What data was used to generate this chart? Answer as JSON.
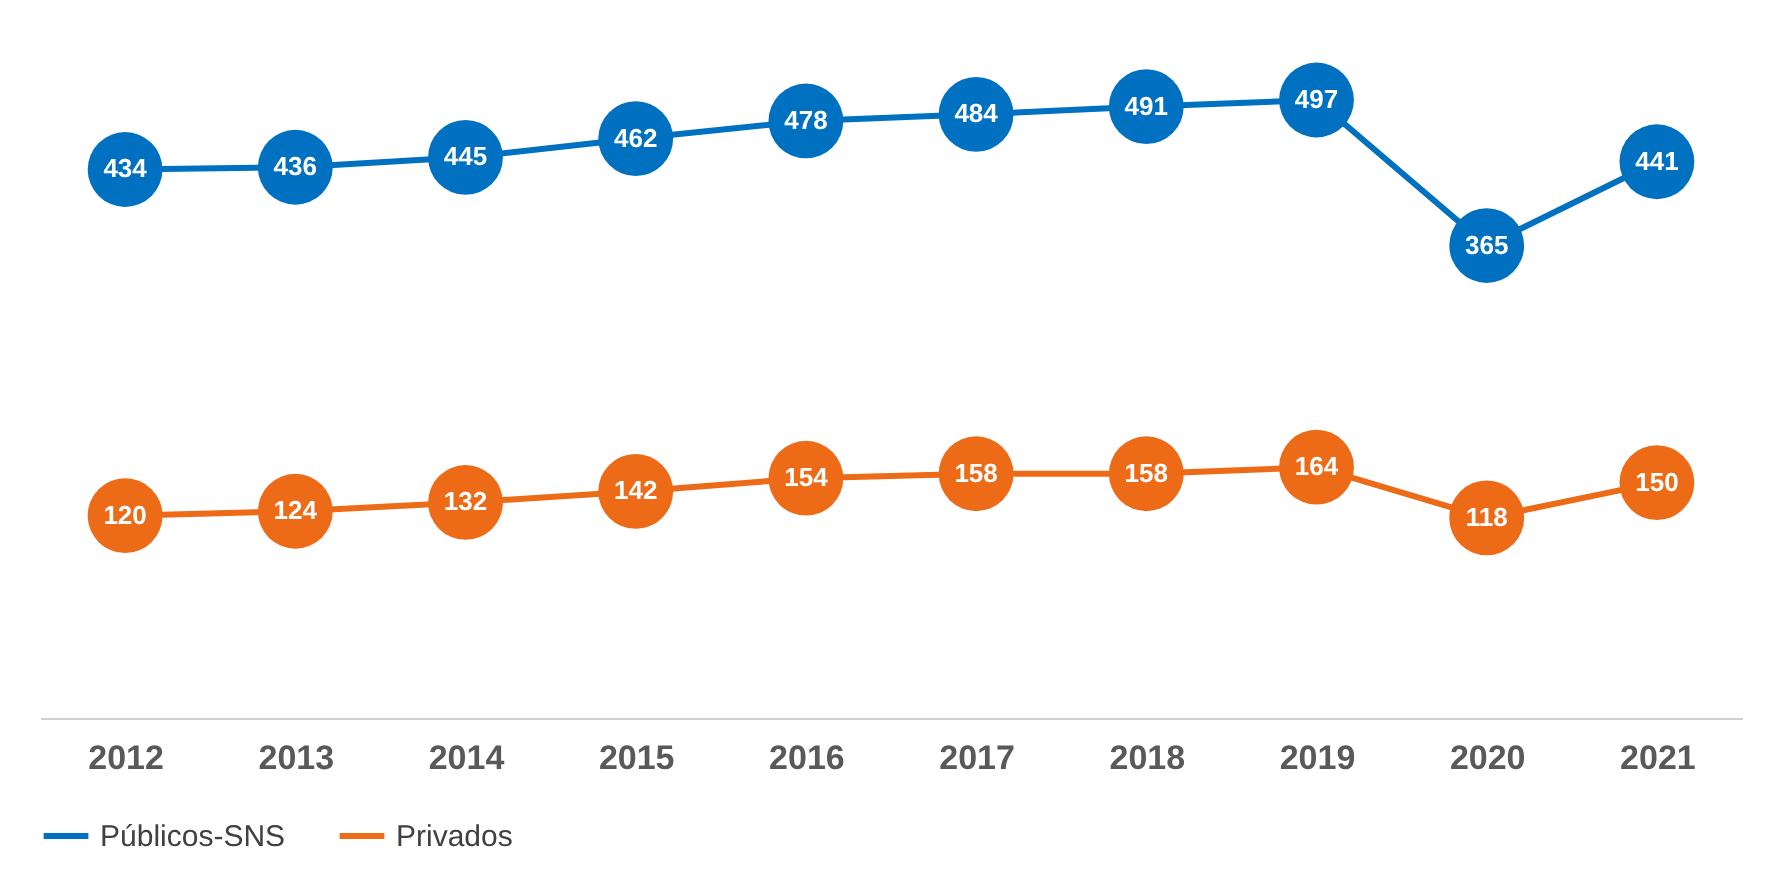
{
  "chart_data": {
    "type": "line",
    "categories": [
      "2012",
      "2013",
      "2014",
      "2015",
      "2016",
      "2017",
      "2018",
      "2019",
      "2020",
      "2021"
    ],
    "series": [
      {
        "name": "Públicos-SNS",
        "color": "#0070c0",
        "values": [
          434,
          436,
          445,
          462,
          478,
          484,
          491,
          497,
          365,
          441
        ]
      },
      {
        "name": "Privados",
        "color": "#ed6a17",
        "values": [
          120,
          124,
          132,
          142,
          154,
          158,
          158,
          164,
          118,
          150
        ]
      }
    ],
    "data_labels": true,
    "marker": "circle",
    "line_style": "solid",
    "legend": "bottom",
    "grid": false
  }
}
